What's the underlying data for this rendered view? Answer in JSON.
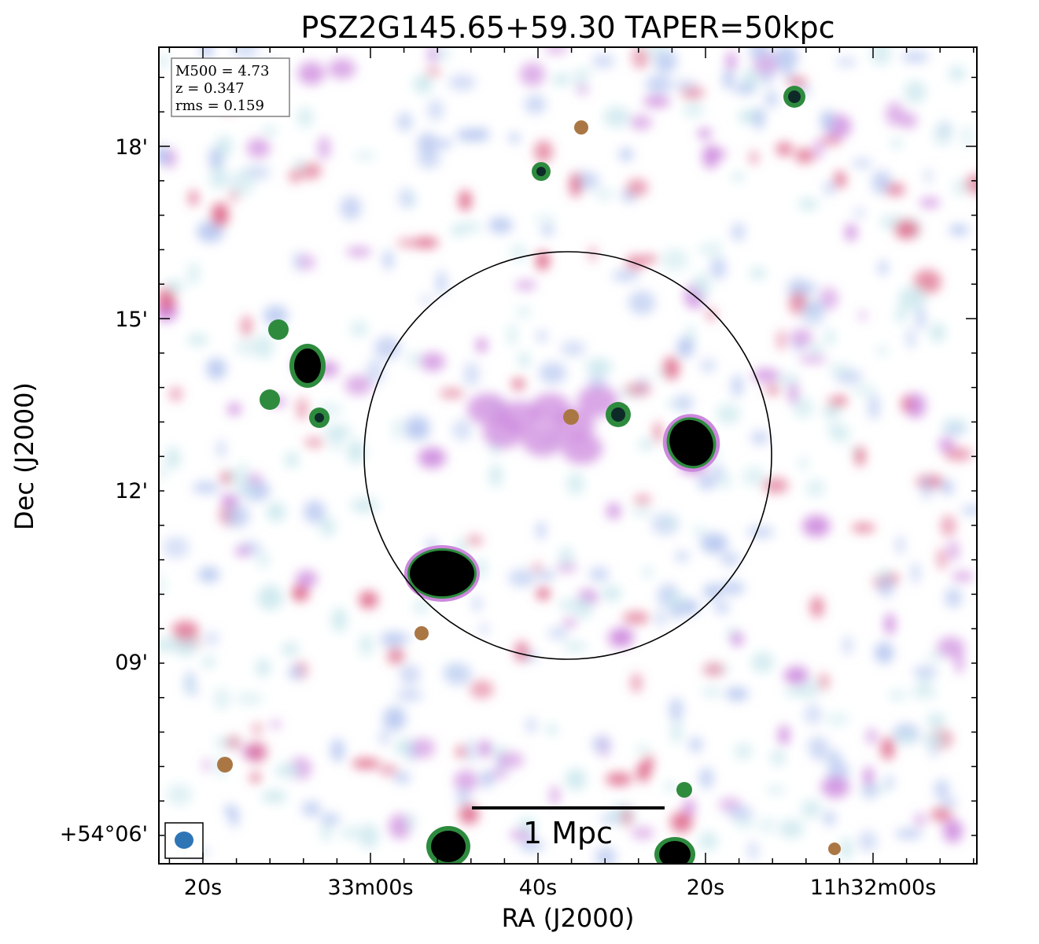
{
  "chart_data": {
    "type": "image",
    "title": "PSZ2G145.65+59.30 TAPER=50kpc",
    "xlabel": "RA (J2000)",
    "ylabel": "Dec (J2000)",
    "x_ticks": [
      "20s",
      "33m00s",
      "40s",
      "20s",
      "11h32m00s"
    ],
    "y_ticks": [
      "18'",
      "15'",
      "12'",
      "09'",
      "+54°06'"
    ],
    "info": {
      "m500": "M500 = 4.73",
      "z": "z = 0.347",
      "rms": "rms = 0.159"
    },
    "scalebar_label": "1 Mpc",
    "colormap": [
      "#ffffff",
      "#cce8ee",
      "#b8c8f0",
      "#cc88dd",
      "#dd6688",
      "#aa7744",
      "#2e8b3e",
      "#0d2a28",
      "#000000"
    ],
    "circle_color": "#000000",
    "beam_color": "#2e75b6",
    "grid": false,
    "legend": "none"
  }
}
